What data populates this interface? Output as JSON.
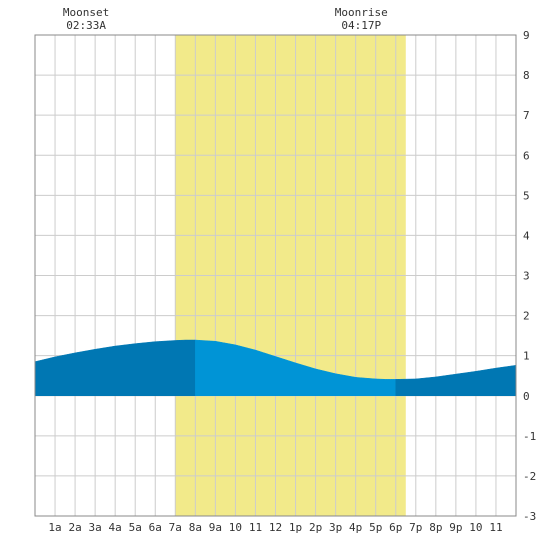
{
  "chart_data": {
    "type": "area",
    "x_unit": "hour of day",
    "x_tick_labels": [
      "1a",
      "2a",
      "3a",
      "4a",
      "5a",
      "6a",
      "7a",
      "8a",
      "9a",
      "10",
      "11",
      "12",
      "1p",
      "2p",
      "3p",
      "4p",
      "5p",
      "6p",
      "7p",
      "8p",
      "9p",
      "10",
      "11"
    ],
    "x_ticks": [
      1,
      2,
      3,
      4,
      5,
      6,
      7,
      8,
      9,
      10,
      11,
      12,
      13,
      14,
      15,
      16,
      17,
      18,
      19,
      20,
      21,
      22,
      23
    ],
    "xlim": [
      0,
      24
    ],
    "ylim": [
      -3,
      9
    ],
    "y_ticks": [
      -3,
      -2,
      -1,
      0,
      1,
      2,
      3,
      4,
      5,
      6,
      7,
      8,
      9
    ],
    "y_tick_labels": [
      "-3",
      "-2",
      "-1",
      "0",
      "1",
      "2",
      "3",
      "4",
      "5",
      "6",
      "7",
      "8",
      "9"
    ],
    "grid": true,
    "daylight": {
      "start": 7.0,
      "end": 18.5,
      "color": "#f2ea8a"
    },
    "series": [
      {
        "x": [
          0,
          1,
          2,
          3,
          4,
          5,
          6,
          7,
          7.5,
          8,
          9,
          10,
          11,
          12,
          13,
          14,
          15,
          16,
          17,
          17.5,
          18,
          19,
          20,
          21,
          22,
          23,
          24
        ],
        "y": [
          0.85,
          0.97,
          1.07,
          1.16,
          1.24,
          1.3,
          1.35,
          1.38,
          1.39,
          1.39,
          1.36,
          1.27,
          1.14,
          0.98,
          0.82,
          0.67,
          0.55,
          0.46,
          0.42,
          0.41,
          0.41,
          0.42,
          0.47,
          0.54,
          0.61,
          0.69,
          0.76
        ]
      }
    ],
    "segments": [
      {
        "from": 0,
        "to": 8.0,
        "color": "#0077b3"
      },
      {
        "from": 8.0,
        "to": 18.0,
        "color": "#0094d6"
      },
      {
        "from": 18.0,
        "to": 24,
        "color": "#0077b3"
      }
    ],
    "annotations": [
      {
        "label": "Moonset",
        "time": "02:33A",
        "x": 2.55
      },
      {
        "label": "Moonrise",
        "time": "04:17P",
        "x": 16.28
      }
    ]
  }
}
